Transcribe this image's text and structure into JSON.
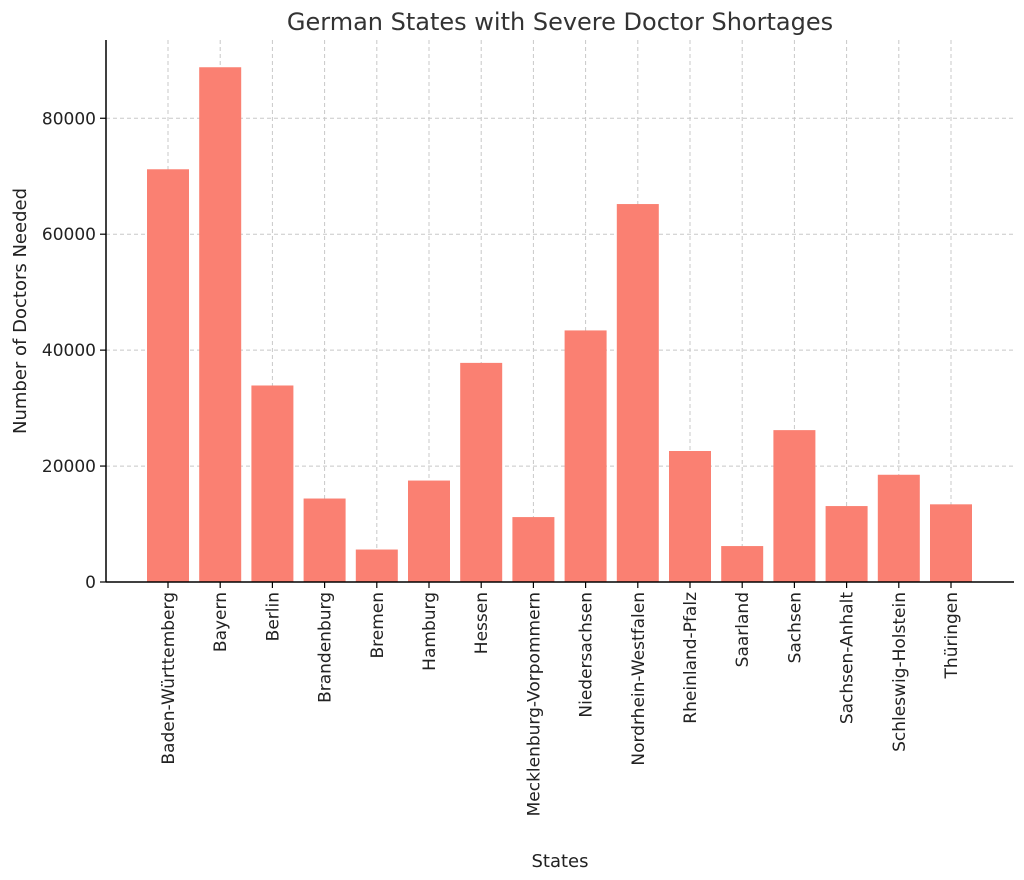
{
  "chart_data": {
    "type": "bar",
    "title": "German States with Severe Doctor Shortages",
    "xlabel": "States",
    "ylabel": "Number of Doctors Needed",
    "categories": [
      "Baden-Württemberg",
      "Bayern",
      "Berlin",
      "Brandenburg",
      "Bremen",
      "Hamburg",
      "Hessen",
      "Mecklenburg-Vorpommern",
      "Niedersachsen",
      "Nordrhein-Westfalen",
      "Rheinland-Pfalz",
      "Saarland",
      "Sachsen",
      "Sachsen-Anhalt",
      "Schleswig-Holstein",
      "Thüringen"
    ],
    "values": [
      71200,
      88800,
      33900,
      14400,
      5600,
      17500,
      37800,
      11200,
      43400,
      65200,
      22600,
      6200,
      26200,
      13100,
      18500,
      13400
    ],
    "ylim": [
      0,
      93500
    ],
    "yticks": [
      0,
      20000,
      40000,
      60000,
      80000
    ],
    "ytick_labels": [
      "0",
      "20000",
      "40000",
      "60000",
      "80000"
    ],
    "grid": true,
    "bar_color": "#fa8072"
  }
}
